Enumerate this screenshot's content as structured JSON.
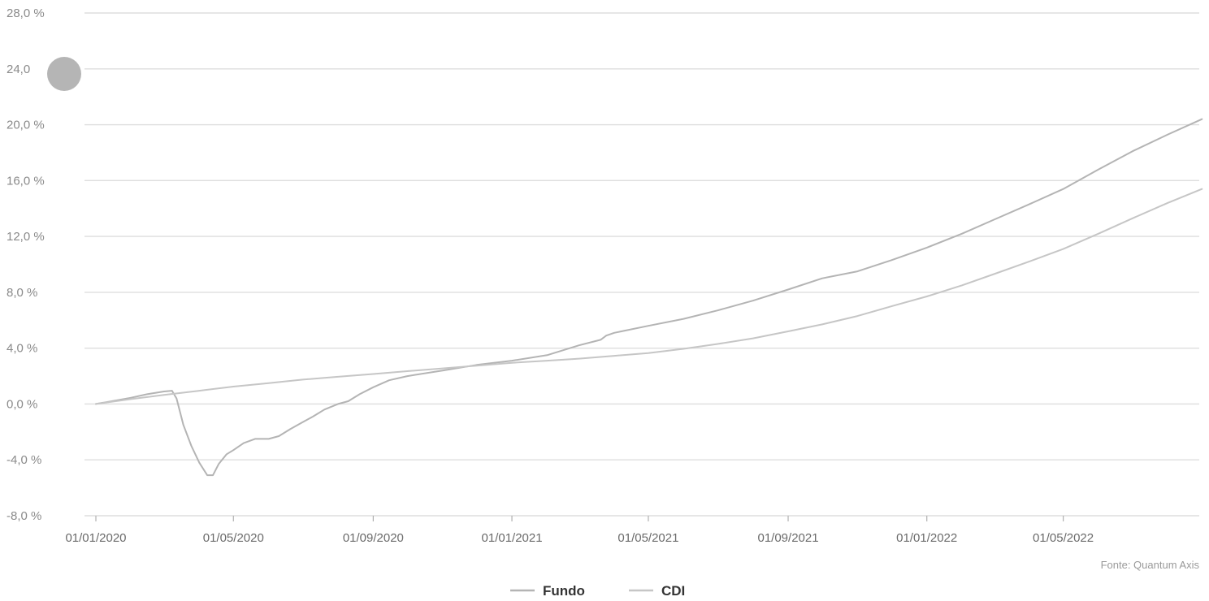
{
  "chart_data": {
    "type": "line",
    "title": "",
    "xlabel": "",
    "ylabel": "",
    "source": "Fonte: Quantum Axis",
    "ylim": [
      -8,
      28
    ],
    "x_range": [
      "01/01/2020",
      "31/08/2022"
    ],
    "grid": true,
    "legend_position": "bottom-center",
    "y_ticks": [
      {
        "value": -8,
        "label": "-8,0 %"
      },
      {
        "value": -4,
        "label": "-4,0 %"
      },
      {
        "value": 0,
        "label": "0,0 %"
      },
      {
        "value": 4,
        "label": "4,0 %"
      },
      {
        "value": 8,
        "label": "8,0 %"
      },
      {
        "value": 12,
        "label": "12,0 %"
      },
      {
        "value": 16,
        "label": "16,0 %"
      },
      {
        "value": 20,
        "label": "20,0 %"
      },
      {
        "value": 24,
        "label": "24,0"
      },
      {
        "value": 28,
        "label": "28,0 %"
      }
    ],
    "x_ticks": [
      "01/01/2020",
      "01/05/2020",
      "01/09/2020",
      "01/01/2021",
      "01/05/2021",
      "01/09/2021",
      "01/01/2022",
      "01/05/2022"
    ],
    "series": [
      {
        "name": "Fundo",
        "color": "#b4b4b4",
        "points": [
          [
            "01/01/2020",
            0.0
          ],
          [
            "15/01/2020",
            0.2
          ],
          [
            "01/02/2020",
            0.45
          ],
          [
            "15/02/2020",
            0.7
          ],
          [
            "01/03/2020",
            0.9
          ],
          [
            "08/03/2020",
            0.95
          ],
          [
            "12/03/2020",
            0.4
          ],
          [
            "18/03/2020",
            -1.5
          ],
          [
            "25/03/2020",
            -3.0
          ],
          [
            "01/04/2020",
            -4.2
          ],
          [
            "08/04/2020",
            -5.1
          ],
          [
            "13/04/2020",
            -5.1
          ],
          [
            "18/04/2020",
            -4.3
          ],
          [
            "25/04/2020",
            -3.6
          ],
          [
            "01/05/2020",
            -3.3
          ],
          [
            "10/05/2020",
            -2.8
          ],
          [
            "20/05/2020",
            -2.5
          ],
          [
            "01/06/2020",
            -2.5
          ],
          [
            "10/06/2020",
            -2.3
          ],
          [
            "20/06/2020",
            -1.8
          ],
          [
            "01/07/2020",
            -1.3
          ],
          [
            "10/07/2020",
            -0.9
          ],
          [
            "20/07/2020",
            -0.4
          ],
          [
            "01/08/2020",
            0.0
          ],
          [
            "10/08/2020",
            0.2
          ],
          [
            "20/08/2020",
            0.7
          ],
          [
            "01/09/2020",
            1.2
          ],
          [
            "15/09/2020",
            1.7
          ],
          [
            "01/10/2020",
            2.0
          ],
          [
            "01/11/2020",
            2.4
          ],
          [
            "01/12/2020",
            2.8
          ],
          [
            "01/01/2021",
            3.1
          ],
          [
            "01/02/2021",
            3.5
          ],
          [
            "01/03/2021",
            4.2
          ],
          [
            "20/03/2021",
            4.6
          ],
          [
            "25/03/2021",
            4.9
          ],
          [
            "01/04/2021",
            5.1
          ],
          [
            "01/05/2021",
            5.6
          ],
          [
            "01/06/2021",
            6.1
          ],
          [
            "01/07/2021",
            6.7
          ],
          [
            "01/08/2021",
            7.4
          ],
          [
            "01/09/2021",
            8.2
          ],
          [
            "01/10/2021",
            9.0
          ],
          [
            "01/11/2021",
            9.5
          ],
          [
            "01/12/2021",
            10.3
          ],
          [
            "01/01/2022",
            11.2
          ],
          [
            "01/02/2022",
            12.2
          ],
          [
            "01/03/2022",
            13.2
          ],
          [
            "01/04/2022",
            14.3
          ],
          [
            "01/05/2022",
            15.4
          ],
          [
            "01/06/2022",
            16.8
          ],
          [
            "01/07/2022",
            18.1
          ],
          [
            "01/08/2022",
            19.3
          ],
          [
            "31/08/2022",
            20.4
          ]
        ]
      },
      {
        "name": "CDI",
        "color": "#c6c6c6",
        "points": [
          [
            "01/01/2020",
            0.0
          ],
          [
            "01/02/2020",
            0.35
          ],
          [
            "01/03/2020",
            0.65
          ],
          [
            "01/04/2020",
            0.95
          ],
          [
            "01/05/2020",
            1.25
          ],
          [
            "01/06/2020",
            1.5
          ],
          [
            "01/07/2020",
            1.75
          ],
          [
            "01/08/2020",
            1.95
          ],
          [
            "01/09/2020",
            2.15
          ],
          [
            "01/10/2020",
            2.35
          ],
          [
            "01/11/2020",
            2.55
          ],
          [
            "01/12/2020",
            2.75
          ],
          [
            "01/01/2021",
            2.95
          ],
          [
            "01/02/2021",
            3.1
          ],
          [
            "01/03/2021",
            3.25
          ],
          [
            "01/04/2021",
            3.45
          ],
          [
            "01/05/2021",
            3.65
          ],
          [
            "01/06/2021",
            3.95
          ],
          [
            "01/07/2021",
            4.3
          ],
          [
            "01/08/2021",
            4.7
          ],
          [
            "01/09/2021",
            5.2
          ],
          [
            "01/10/2021",
            5.7
          ],
          [
            "01/11/2021",
            6.3
          ],
          [
            "01/12/2021",
            7.0
          ],
          [
            "01/01/2022",
            7.7
          ],
          [
            "01/02/2022",
            8.5
          ],
          [
            "01/03/2022",
            9.3
          ],
          [
            "01/04/2022",
            10.2
          ],
          [
            "01/05/2022",
            11.1
          ],
          [
            "01/06/2022",
            12.2
          ],
          [
            "01/07/2022",
            13.3
          ],
          [
            "01/08/2022",
            14.4
          ],
          [
            "31/08/2022",
            15.4
          ]
        ]
      }
    ]
  }
}
